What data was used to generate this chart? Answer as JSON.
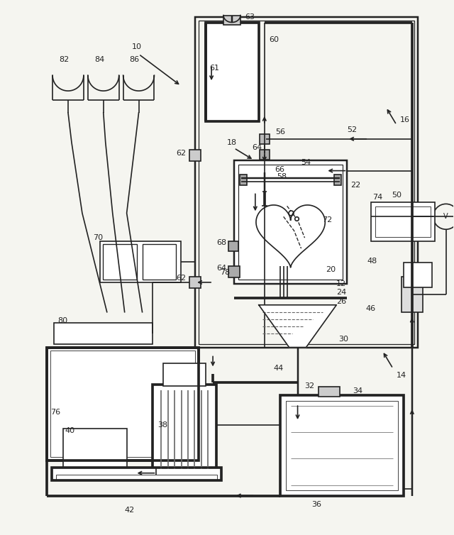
{
  "bg_color": "#f5f5f0",
  "line_color": "#222222",
  "lw": 1.2,
  "fig_w": 6.4,
  "fig_h": 7.54
}
